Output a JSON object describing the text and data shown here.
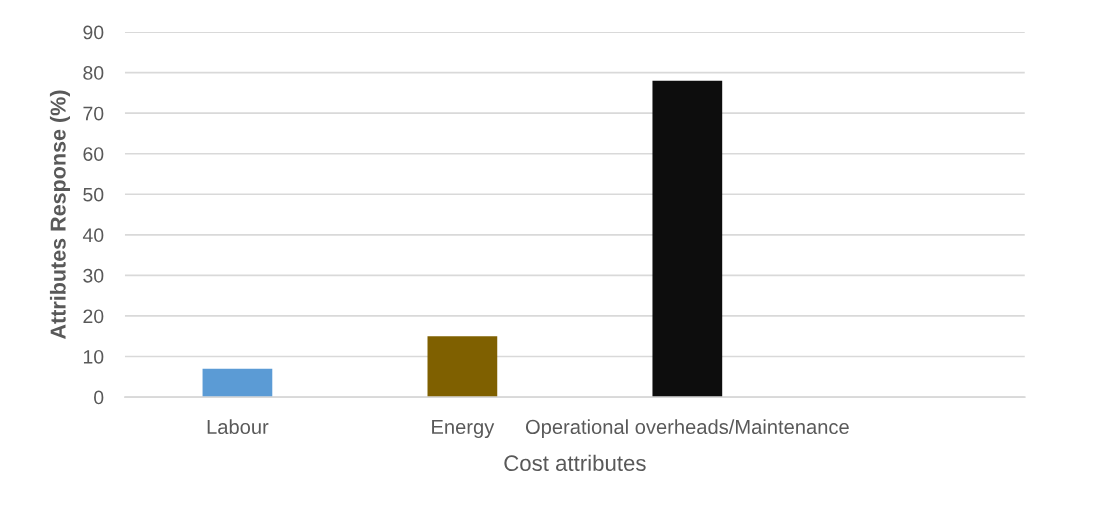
{
  "chart_data": {
    "type": "bar",
    "xlabel": "Cost attributes",
    "ylabel": "Attributes Response (%)",
    "categories": [
      "Labour",
      "Energy",
      "Operational overheads/Maintenance",
      null
    ],
    "values": [
      7,
      15,
      78,
      null
    ],
    "colors": [
      "#5b9bd5",
      "#7f6000",
      "#0d0d0d",
      null
    ],
    "ylim": [
      0,
      90
    ],
    "yticks": [
      0,
      10,
      20,
      30,
      40,
      50,
      60,
      70,
      80,
      90
    ],
    "grid": "y"
  }
}
